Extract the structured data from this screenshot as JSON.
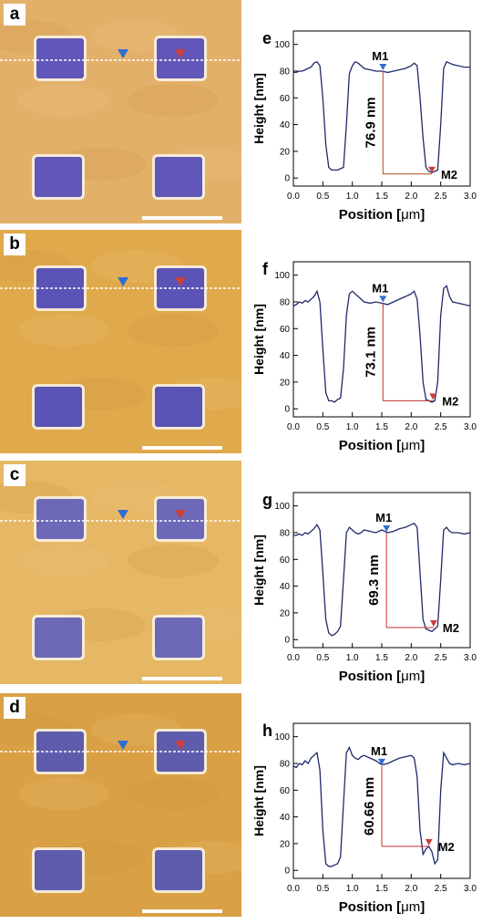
{
  "afm_panels": [
    {
      "letter": "a",
      "base": "#e3b06a",
      "hole": "#6157b8"
    },
    {
      "letter": "b",
      "base": "#e0a94c",
      "hole": "#5c53b6"
    },
    {
      "letter": "c",
      "base": "#e6b765",
      "hole": "#6d69b8"
    },
    {
      "letter": "d",
      "base": "#d9a045",
      "hole": "#5f5cae"
    }
  ],
  "chart_data": [
    {
      "type": "line",
      "panel": "e",
      "xlabel_prefix": "Position [",
      "xlabel_unit": "μm",
      "xlabel_suffix": "]",
      "ylabel": "Height [nm]",
      "xlim": [
        0,
        3.0
      ],
      "ylim": [
        -6,
        110
      ],
      "xticks": [
        "0.0",
        "0.5",
        "1.0",
        "1.5",
        "2.0",
        "2.5",
        "3.0"
      ],
      "yticks": [
        "0",
        "20",
        "40",
        "60",
        "80",
        "100"
      ],
      "marker1": {
        "label": "M1",
        "x": 1.52,
        "y": 80
      },
      "marker2": {
        "label": "M2",
        "x": 2.35,
        "y": 3
      },
      "step_annotation": "76.9 nm",
      "x": [
        0,
        0.05,
        0.1,
        0.15,
        0.2,
        0.25,
        0.3,
        0.35,
        0.4,
        0.45,
        0.5,
        0.55,
        0.6,
        0.65,
        0.7,
        0.75,
        0.8,
        0.85,
        0.9,
        0.95,
        1.0,
        1.05,
        1.1,
        1.15,
        1.2,
        1.3,
        1.4,
        1.5,
        1.6,
        1.7,
        1.8,
        1.9,
        2.0,
        2.05,
        2.1,
        2.15,
        2.2,
        2.25,
        2.3,
        2.35,
        2.4,
        2.45,
        2.5,
        2.55,
        2.6,
        2.65,
        2.7,
        2.8,
        2.9,
        3.0
      ],
      "y": [
        79,
        79,
        80,
        80,
        81,
        82,
        83,
        86,
        87,
        84,
        60,
        25,
        8,
        6,
        6,
        6,
        7,
        8,
        40,
        78,
        84,
        87,
        86,
        84,
        82,
        81,
        80,
        80,
        79,
        80,
        81,
        82,
        84,
        86,
        84,
        60,
        30,
        8,
        5,
        4,
        5,
        6,
        40,
        82,
        87,
        86,
        85,
        84,
        83,
        83
      ]
    },
    {
      "type": "line",
      "panel": "f",
      "xlabel_prefix": "Position [",
      "xlabel_unit": "μm",
      "xlabel_suffix": "]",
      "ylabel": "Height [nm]",
      "xlim": [
        0,
        3.0
      ],
      "ylim": [
        -6,
        110
      ],
      "xticks": [
        "0.0",
        "0.5",
        "1.0",
        "1.5",
        "2.0",
        "2.5",
        "3.0"
      ],
      "yticks": [
        "0",
        "20",
        "40",
        "60",
        "80",
        "100"
      ],
      "marker1": {
        "label": "M1",
        "x": 1.52,
        "y": 79
      },
      "marker2": {
        "label": "M2",
        "x": 2.37,
        "y": 6
      },
      "step_annotation": "73.1 nm",
      "x": [
        0,
        0.05,
        0.1,
        0.15,
        0.2,
        0.25,
        0.3,
        0.35,
        0.4,
        0.45,
        0.5,
        0.55,
        0.6,
        0.65,
        0.7,
        0.75,
        0.8,
        0.85,
        0.9,
        0.95,
        1.0,
        1.05,
        1.1,
        1.15,
        1.2,
        1.3,
        1.4,
        1.5,
        1.6,
        1.7,
        1.8,
        1.9,
        2.0,
        2.05,
        2.1,
        2.15,
        2.2,
        2.25,
        2.3,
        2.35,
        2.4,
        2.45,
        2.5,
        2.55,
        2.6,
        2.65,
        2.7,
        2.8,
        2.9,
        3.0
      ],
      "y": [
        77,
        78,
        80,
        79,
        81,
        80,
        82,
        84,
        88,
        80,
        45,
        12,
        6,
        6,
        5,
        7,
        8,
        30,
        70,
        86,
        88,
        86,
        84,
        82,
        80,
        79,
        80,
        79,
        78,
        80,
        82,
        84,
        86,
        88,
        82,
        55,
        20,
        7,
        6,
        5,
        6,
        20,
        70,
        90,
        92,
        84,
        80,
        79,
        78,
        77
      ]
    },
    {
      "type": "line",
      "panel": "g",
      "xlabel_prefix": "Position [",
      "xlabel_unit": "μm",
      "xlabel_suffix": "]",
      "ylabel": "Height [nm]",
      "xlim": [
        0,
        3.0
      ],
      "ylim": [
        -6,
        110
      ],
      "xticks": [
        "0.0",
        "0.5",
        "1.0",
        "1.5",
        "2.0",
        "2.5",
        "3.0"
      ],
      "yticks": [
        "0",
        "20",
        "40",
        "60",
        "80",
        "100"
      ],
      "marker1": {
        "label": "M1",
        "x": 1.58,
        "y": 80
      },
      "marker2": {
        "label": "M2",
        "x": 2.38,
        "y": 9
      },
      "step_annotation": "69.3 nm",
      "x": [
        0,
        0.05,
        0.1,
        0.15,
        0.2,
        0.25,
        0.3,
        0.35,
        0.4,
        0.45,
        0.5,
        0.55,
        0.6,
        0.65,
        0.7,
        0.75,
        0.8,
        0.85,
        0.9,
        0.95,
        1.0,
        1.05,
        1.1,
        1.15,
        1.2,
        1.3,
        1.4,
        1.5,
        1.6,
        1.7,
        1.8,
        1.9,
        2.0,
        2.05,
        2.1,
        2.15,
        2.2,
        2.25,
        2.3,
        2.35,
        2.4,
        2.45,
        2.5,
        2.55,
        2.6,
        2.65,
        2.7,
        2.8,
        2.9,
        3.0
      ],
      "y": [
        78,
        78,
        79,
        78,
        80,
        79,
        81,
        83,
        86,
        82,
        50,
        15,
        5,
        3,
        4,
        6,
        10,
        45,
        80,
        84,
        82,
        80,
        79,
        80,
        82,
        81,
        80,
        82,
        80,
        81,
        83,
        84,
        86,
        87,
        84,
        50,
        15,
        8,
        7,
        6,
        8,
        10,
        45,
        82,
        84,
        81,
        80,
        80,
        79,
        80
      ]
    },
    {
      "type": "line",
      "panel": "h",
      "xlabel_prefix": "Position [",
      "xlabel_unit": "μm",
      "xlabel_suffix": "]",
      "ylabel": "Height [nm]",
      "xlim": [
        0,
        3.0
      ],
      "ylim": [
        -6,
        110
      ],
      "xticks": [
        "0.0",
        "0.5",
        "1.0",
        "1.5",
        "2.0",
        "2.5",
        "3.0"
      ],
      "yticks": [
        "0",
        "20",
        "40",
        "60",
        "80",
        "100"
      ],
      "marker1": {
        "label": "M1",
        "x": 1.5,
        "y": 78
      },
      "marker2": {
        "label": "M2",
        "x": 2.3,
        "y": 18
      },
      "step_annotation": "60.66 nm",
      "x": [
        0,
        0.05,
        0.1,
        0.15,
        0.2,
        0.25,
        0.3,
        0.35,
        0.4,
        0.45,
        0.5,
        0.55,
        0.6,
        0.65,
        0.7,
        0.75,
        0.8,
        0.85,
        0.9,
        0.95,
        1.0,
        1.05,
        1.1,
        1.15,
        1.2,
        1.3,
        1.4,
        1.5,
        1.6,
        1.7,
        1.8,
        1.9,
        2.0,
        2.05,
        2.1,
        2.15,
        2.2,
        2.25,
        2.3,
        2.35,
        2.4,
        2.45,
        2.5,
        2.55,
        2.6,
        2.65,
        2.7,
        2.8,
        2.9,
        3.0
      ],
      "y": [
        78,
        77,
        80,
        79,
        82,
        80,
        84,
        86,
        88,
        75,
        30,
        5,
        3,
        3,
        4,
        5,
        10,
        50,
        88,
        92,
        86,
        84,
        83,
        85,
        86,
        84,
        82,
        79,
        80,
        82,
        84,
        85,
        86,
        84,
        70,
        30,
        12,
        16,
        18,
        14,
        5,
        8,
        60,
        88,
        84,
        80,
        79,
        80,
        79,
        80
      ]
    }
  ]
}
